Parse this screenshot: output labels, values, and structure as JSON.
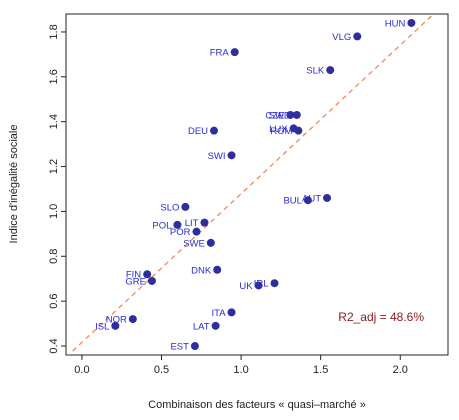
{
  "chart_data": {
    "type": "scatter",
    "xlabel": "Combinaison des facteurs « quasi–marché »",
    "ylabel": "Indice d'inégalité sociale",
    "xlim": [
      -0.1,
      2.3
    ],
    "ylim": [
      0.36,
      1.88
    ],
    "x_ticks": [
      "0.0",
      "0.5",
      "1.0",
      "1.5",
      "2.0"
    ],
    "y_ticks": [
      "0.4",
      "0.6",
      "0.8",
      "1.0",
      "1.2",
      "1.4",
      "1.6",
      "1.8"
    ],
    "grid": false,
    "point_color": "#2e2e9e",
    "label_color": "#2b2bd6",
    "regression_line": {
      "x": [
        -0.1,
        2.3
      ],
      "y": [
        0.35,
        1.94
      ],
      "color": "#f08a5d",
      "style": "dashed"
    },
    "annotation": {
      "text": "R2_adj = 48.6%",
      "x": 1.88,
      "y": 0.53,
      "color": "#8b1a1a"
    },
    "points": [
      {
        "label": "HUN",
        "x": 2.07,
        "y": 1.84
      },
      {
        "label": "VLG",
        "x": 1.73,
        "y": 1.78
      },
      {
        "label": "FRA",
        "x": 0.96,
        "y": 1.71
      },
      {
        "label": "SLK",
        "x": 1.56,
        "y": 1.63
      },
      {
        "label": "SWD",
        "x": 1.35,
        "y": 1.43
      },
      {
        "label": "CZE",
        "x": 1.31,
        "y": 1.43
      },
      {
        "label": "LUX",
        "x": 1.33,
        "y": 1.37
      },
      {
        "label": "ROM",
        "x": 1.36,
        "y": 1.36
      },
      {
        "label": "DEU",
        "x": 0.83,
        "y": 1.36
      },
      {
        "label": "SWI",
        "x": 0.94,
        "y": 1.25
      },
      {
        "label": "BUL",
        "x": 1.42,
        "y": 1.05
      },
      {
        "label": "AUT",
        "x": 1.54,
        "y": 1.06
      },
      {
        "label": "SLO",
        "x": 0.65,
        "y": 1.02
      },
      {
        "label": "POL",
        "x": 0.6,
        "y": 0.94
      },
      {
        "label": "LIT",
        "x": 0.77,
        "y": 0.95
      },
      {
        "label": "POR",
        "x": 0.72,
        "y": 0.91
      },
      {
        "label": "SWE",
        "x": 0.81,
        "y": 0.86
      },
      {
        "label": "DNK",
        "x": 0.85,
        "y": 0.74
      },
      {
        "label": "FIN",
        "x": 0.41,
        "y": 0.72
      },
      {
        "label": "GRE",
        "x": 0.44,
        "y": 0.69
      },
      {
        "label": "IRL",
        "x": 1.21,
        "y": 0.68
      },
      {
        "label": "UK",
        "x": 1.11,
        "y": 0.67
      },
      {
        "label": "NOR",
        "x": 0.32,
        "y": 0.52
      },
      {
        "label": "ISL",
        "x": 0.21,
        "y": 0.49
      },
      {
        "label": "ITA",
        "x": 0.94,
        "y": 0.55
      },
      {
        "label": "LAT",
        "x": 0.84,
        "y": 0.49
      },
      {
        "label": "EST",
        "x": 0.71,
        "y": 0.4
      }
    ]
  }
}
